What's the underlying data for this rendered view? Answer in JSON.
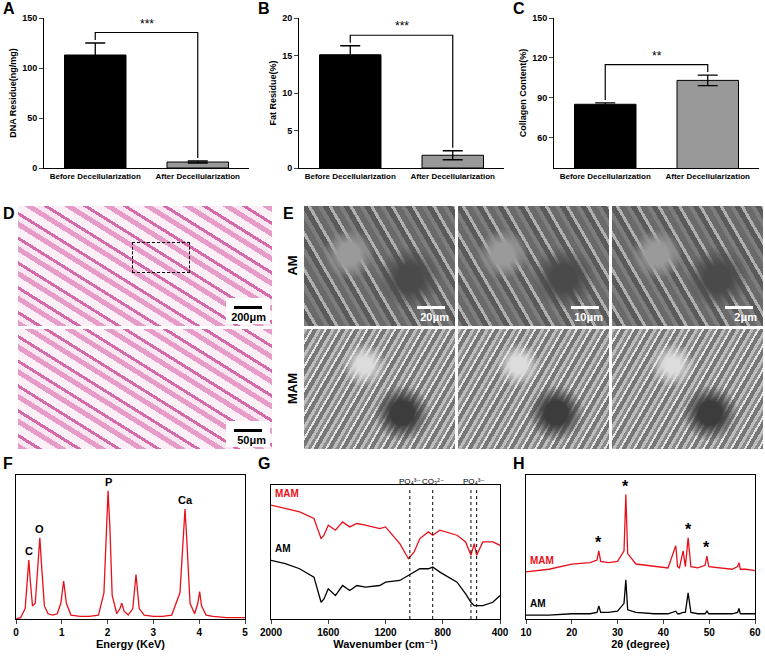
{
  "chart_data": [
    {
      "panel": "A",
      "type": "bar",
      "categories": [
        "Before Decellularization",
        "After Decellularization"
      ],
      "values": [
        113,
        6
      ],
      "errors": [
        12,
        1
      ],
      "colors": [
        "#000000",
        "#999999"
      ],
      "y_label": "DNA Residue(ng/mg)",
      "ylim": [
        0,
        150
      ],
      "yticks": [
        0,
        50,
        100,
        150
      ],
      "significance": "***"
    },
    {
      "panel": "B",
      "type": "bar",
      "categories": [
        "Before Decellularization",
        "After Decellularization"
      ],
      "values": [
        15.1,
        1.7
      ],
      "errors": [
        1.2,
        0.6
      ],
      "colors": [
        "#000000",
        "#999999"
      ],
      "y_label": "Fat Residue(%)",
      "ylim": [
        0,
        20
      ],
      "yticks": [
        0,
        5,
        10,
        15,
        20
      ],
      "significance": "***"
    },
    {
      "panel": "C",
      "type": "bar",
      "categories": [
        "Before Decellularization",
        "After Decellularization"
      ],
      "values": [
        85,
        103
      ],
      "errors": [
        1,
        4
      ],
      "colors": [
        "#000000",
        "#999999"
      ],
      "y_label": "Collagen Content(%)",
      "ylim": [
        37,
        150
      ],
      "yticks": [
        60,
        90,
        120,
        150
      ],
      "significance": "**"
    },
    {
      "panel": "F",
      "type": "line",
      "x": [
        0,
        0.1,
        0.2,
        0.25,
        0.28,
        0.31,
        0.36,
        0.42,
        0.48,
        0.52,
        0.56,
        0.62,
        0.7,
        0.8,
        0.9,
        0.98,
        1.04,
        1.1,
        1.2,
        1.4,
        1.6,
        1.8,
        1.92,
        1.97,
        2.01,
        2.05,
        2.1,
        2.2,
        2.27,
        2.31,
        2.36,
        2.45,
        2.55,
        2.62,
        2.69,
        2.8,
        3.0,
        3.2,
        3.4,
        3.58,
        3.65,
        3.69,
        3.73,
        3.8,
        3.9,
        3.97,
        4.01,
        4.05,
        4.15,
        4.3,
        4.6,
        5.0
      ],
      "values": [
        0,
        1,
        8,
        30,
        45,
        30,
        10,
        12,
        40,
        62,
        40,
        10,
        4,
        3,
        4,
        12,
        29,
        12,
        3,
        2,
        2,
        3,
        20,
        70,
        98,
        70,
        18,
        4,
        8,
        12,
        6,
        3,
        8,
        34,
        8,
        3,
        2,
        2,
        3,
        20,
        60,
        84,
        60,
        12,
        4,
        12,
        21,
        10,
        3,
        2,
        1,
        1
      ],
      "color": "#e8101a",
      "x_label": "Energy (KeV)",
      "xlim": [
        0,
        5
      ],
      "xticks": [
        0,
        1,
        2,
        3,
        4,
        5
      ],
      "ylim": [
        0,
        110
      ],
      "tick_labels": "x",
      "annotations": [
        {
          "x": 0.28,
          "y": 45,
          "text": "C"
        },
        {
          "x": 0.52,
          "y": 62,
          "text": "O"
        },
        {
          "x": 2.01,
          "y": 98,
          "text": "P"
        },
        {
          "x": 3.69,
          "y": 84,
          "text": "Ca"
        }
      ]
    },
    {
      "panel": "G",
      "type": "line",
      "x": [
        2000,
        1900,
        1800,
        1700,
        1650,
        1630,
        1600,
        1550,
        1500,
        1450,
        1400,
        1340,
        1240,
        1200,
        1100,
        1040,
        1000,
        960,
        900,
        870,
        820,
        700,
        640,
        603,
        580,
        563,
        520,
        450,
        400
      ],
      "series": [
        {
          "name": "MAM",
          "color": "#e8101a",
          "values": [
            88,
            86,
            84,
            80,
            68,
            70,
            76,
            73,
            78,
            75,
            77,
            76,
            74,
            75,
            65,
            56,
            60,
            68,
            72,
            70,
            73,
            70,
            66,
            58,
            65,
            58,
            66,
            66,
            64
          ]
        },
        {
          "name": "AM",
          "color": "#000000",
          "values": [
            55,
            53,
            50,
            45,
            30,
            32,
            38,
            34,
            40,
            37,
            40,
            39,
            40,
            42,
            43,
            46,
            48,
            50,
            50,
            51,
            48,
            42,
            35,
            30,
            28,
            28,
            28,
            30,
            34
          ]
        }
      ],
      "x_label": "Wavenumber (cm⁻¹)",
      "xlim": [
        2000,
        400
      ],
      "xticks": [
        2000,
        1600,
        1200,
        800,
        400
      ],
      "ylim": [
        20,
        100
      ],
      "tick_labels": "x",
      "reference_lines": [
        {
          "x": [
            1030
          ],
          "label": "PO₄³⁻"
        },
        {
          "x": [
            870
          ],
          "label": "CO₃²⁻"
        },
        {
          "x": [
            603,
            563
          ],
          "label": "PO₄³⁻"
        }
      ]
    },
    {
      "panel": "H",
      "type": "line",
      "x": [
        10,
        15,
        20,
        24,
        25.5,
        25.9,
        26.3,
        28,
        30,
        31.4,
        31.8,
        32.2,
        34,
        38,
        41,
        42.7,
        43.1,
        43.5,
        44.3,
        44.8,
        45.4,
        46,
        47.5,
        49.1,
        49.5,
        49.9,
        52,
        55,
        56.2,
        56.5,
        56.8,
        58,
        60
      ],
      "series": [
        {
          "name": "MAM",
          "color": "#e8101a",
          "values": [
            36,
            38,
            42,
            43,
            45,
            52,
            44,
            43,
            44,
            52,
            95,
            50,
            42,
            40,
            39,
            56,
            40,
            39,
            52,
            40,
            62,
            40,
            39,
            41,
            48,
            40,
            39,
            38,
            40,
            43,
            38,
            38,
            37
          ]
        },
        {
          "name": "AM",
          "color": "#000000",
          "values": [
            3,
            3,
            4,
            4,
            5,
            10,
            5,
            5,
            6,
            12,
            30,
            7,
            5,
            4,
            4,
            6,
            4,
            4,
            5,
            5,
            20,
            5,
            4,
            4,
            6,
            4,
            4,
            4,
            5,
            8,
            4,
            4,
            4
          ]
        }
      ],
      "x_label": "2θ (degree)",
      "xlim": [
        10,
        60
      ],
      "xticks": [
        10,
        20,
        30,
        40,
        50,
        60
      ],
      "ylim": [
        0,
        110
      ],
      "tick_labels": "x",
      "annotations": [
        {
          "x": 25.9,
          "y": 52,
          "text": "*"
        },
        {
          "x": 31.8,
          "y": 95,
          "text": "*"
        },
        {
          "x": 45.4,
          "y": 62,
          "text": "*"
        },
        {
          "x": 49.5,
          "y": 48,
          "text": "*"
        }
      ]
    }
  ],
  "micrographs": [
    {
      "panel": "D",
      "images": [
        {
          "scale_bar": "200μm"
        },
        {
          "scale_bar": "50μm"
        }
      ]
    },
    {
      "panel": "E",
      "rows": [
        "AM",
        "MAM"
      ],
      "scale_bars": [
        "20μm",
        "10μm",
        "2μm"
      ]
    }
  ]
}
